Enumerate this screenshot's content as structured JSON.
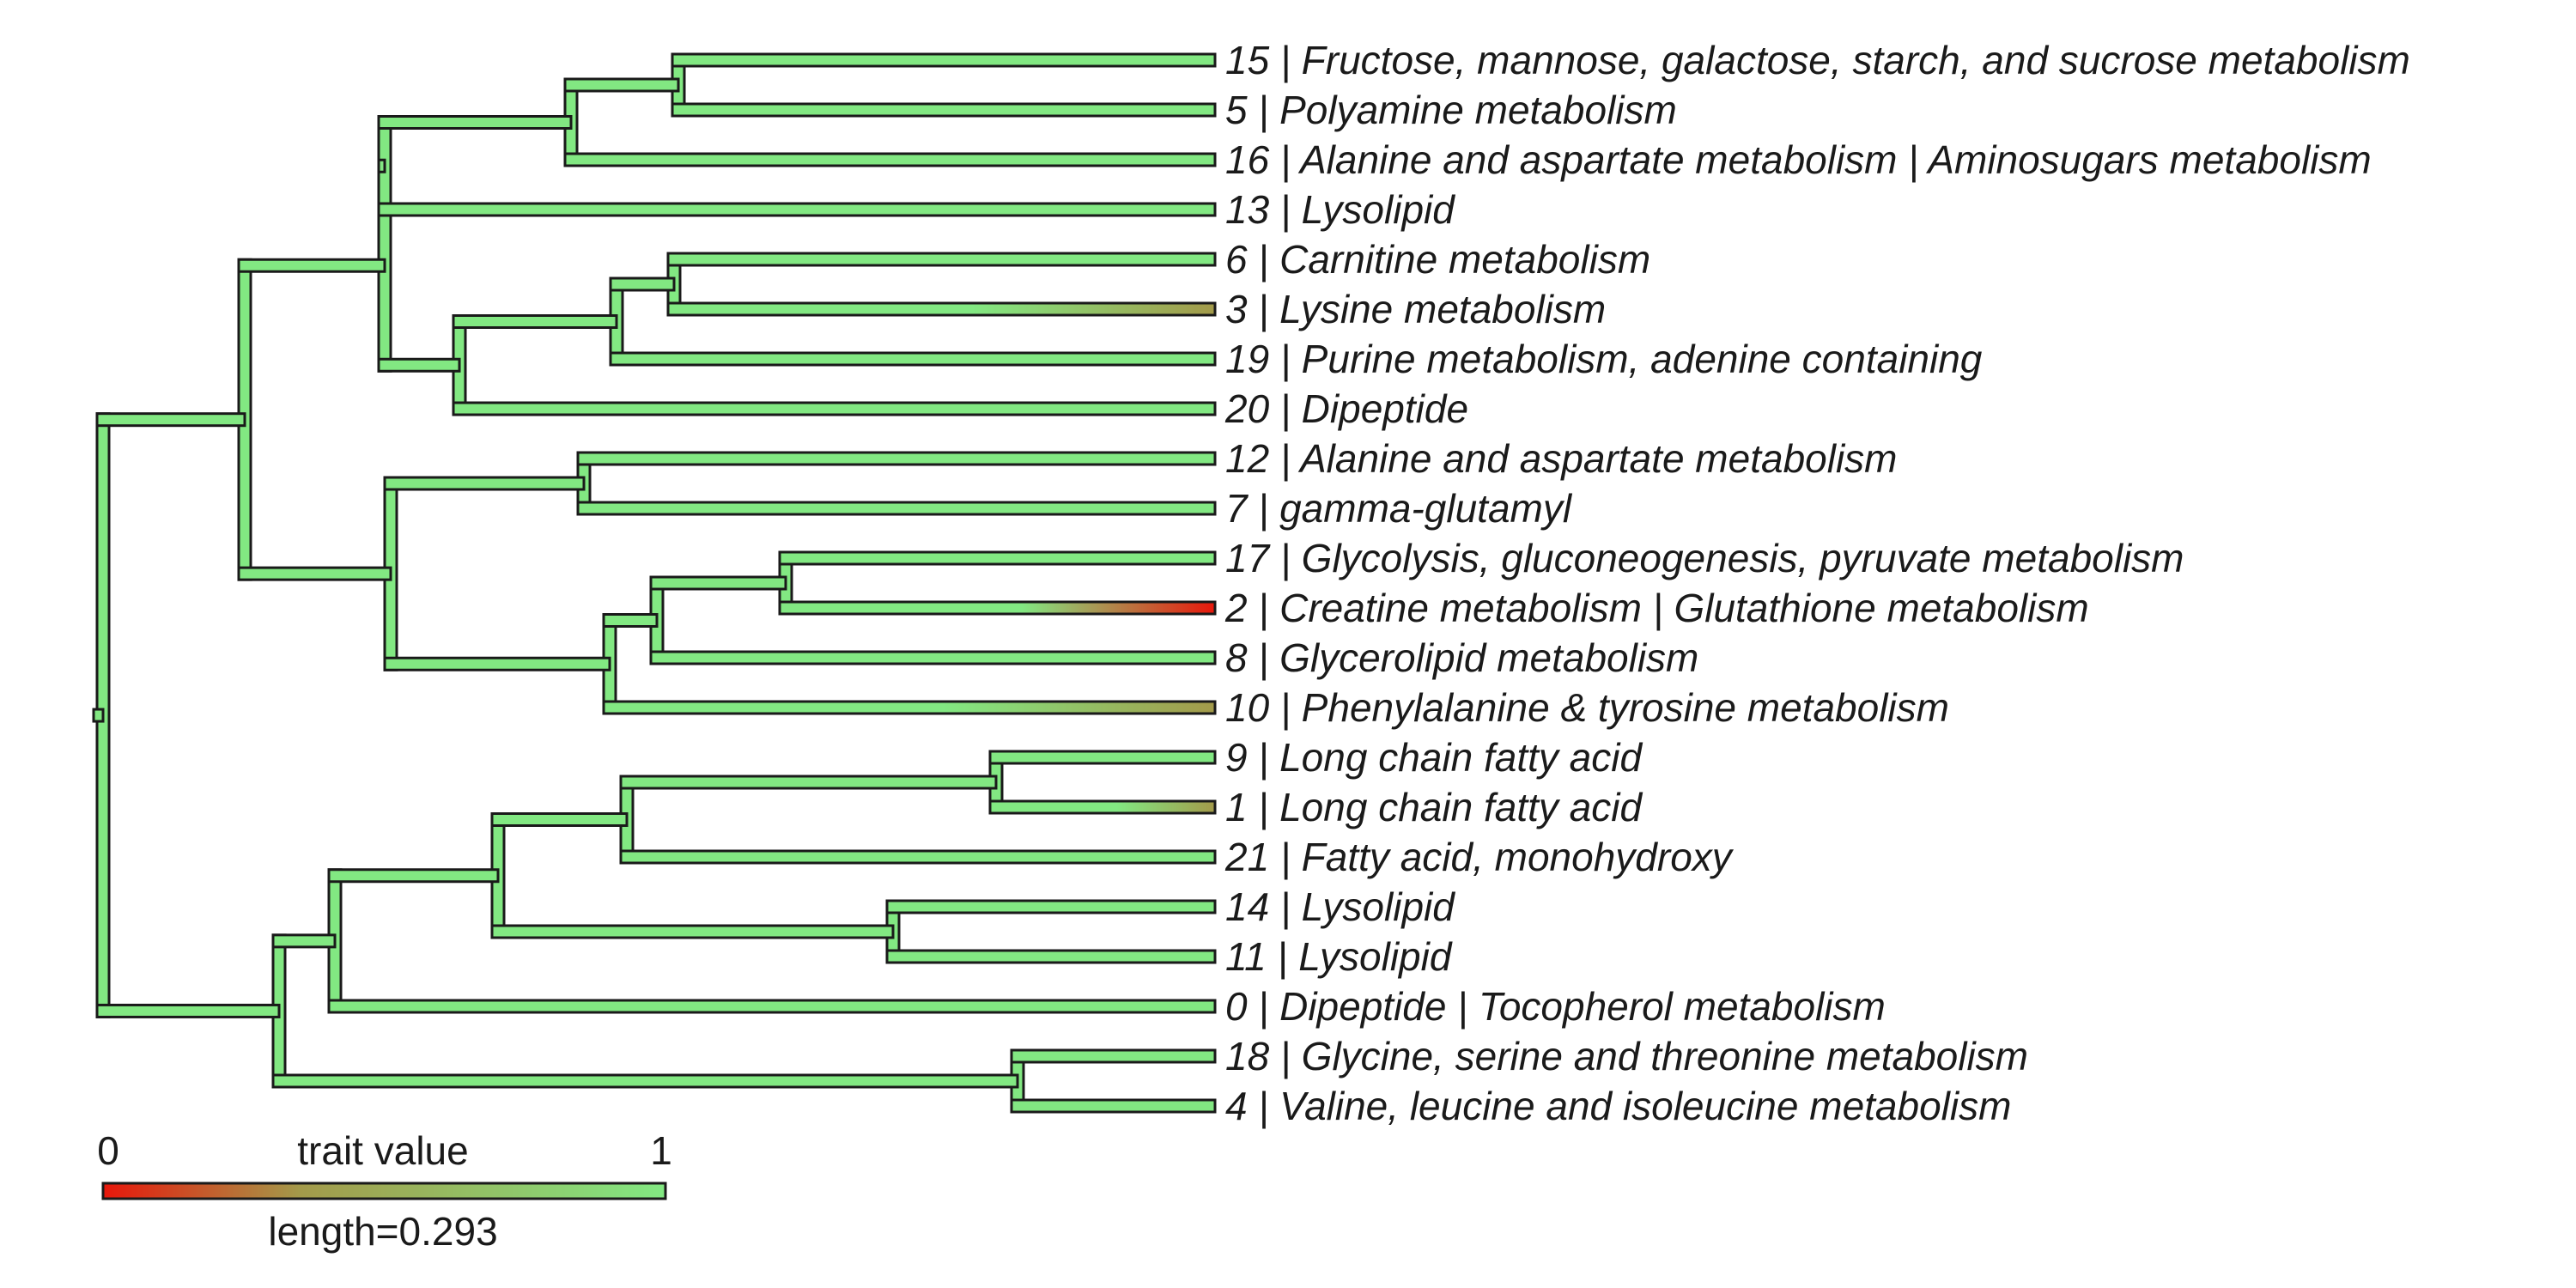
{
  "tree": {
    "tips": [
      {
        "id": "15",
        "label": "15 | Fructose, mannose, galactose, starch, and sucrose metabolism",
        "value": 1.0
      },
      {
        "id": "5",
        "label": "5 | Polyamine metabolism",
        "value": 1.0
      },
      {
        "id": "16",
        "label": "16 | Alanine and aspartate metabolism | Aminosugars metabolism",
        "value": 1.0
      },
      {
        "id": "13",
        "label": "13 | Lysolipid",
        "value": 1.0
      },
      {
        "id": "6",
        "label": "6 | Carnitine metabolism",
        "value": 1.0
      },
      {
        "id": "3",
        "label": "3 | Lysine metabolism",
        "value": 0.5
      },
      {
        "id": "19",
        "label": "19 | Purine metabolism, adenine containing",
        "value": 1.0
      },
      {
        "id": "20",
        "label": "20 | Dipeptide",
        "value": 1.0
      },
      {
        "id": "12",
        "label": "12 | Alanine and aspartate metabolism",
        "value": 1.0
      },
      {
        "id": "7",
        "label": "7 | gamma-glutamyl",
        "value": 1.0
      },
      {
        "id": "17",
        "label": "17 | Glycolysis, gluconeogenesis, pyruvate metabolism",
        "value": 1.0
      },
      {
        "id": "2",
        "label": "2 | Creatine metabolism | Glutathione metabolism",
        "value": 0.0
      },
      {
        "id": "8",
        "label": "8 | Glycerolipid metabolism",
        "value": 1.0
      },
      {
        "id": "10",
        "label": "10 | Phenylalanine & tyrosine metabolism",
        "value": 0.5
      },
      {
        "id": "9",
        "label": "9 | Long chain fatty acid",
        "value": 1.0
      },
      {
        "id": "1",
        "label": "1 | Long chain fatty acid",
        "value": 0.6
      },
      {
        "id": "21",
        "label": "21 | Fatty acid, monohydroxy",
        "value": 1.0
      },
      {
        "id": "14",
        "label": "14 | Lysolipid",
        "value": 1.0
      },
      {
        "id": "11",
        "label": "11 | Lysolipid",
        "value": 1.0
      },
      {
        "id": "0",
        "label": "0 | Dipeptide | Tocopherol metabolism",
        "value": 1.0
      },
      {
        "id": "18",
        "label": "18 | Glycine, serine and threonine metabolism",
        "value": 1.0
      },
      {
        "id": "4",
        "label": "4 | Valine, leucine and isoleucine metabolism",
        "value": 1.0
      }
    ]
  },
  "legend": {
    "min_label": "0",
    "max_label": "1",
    "title": "trait value",
    "length_label": "length=0.293",
    "colors": {
      "low": "#e8170b",
      "mid": "#a39a4a",
      "high": "#82e882"
    }
  },
  "colors": {
    "branch_fill": "#82e882",
    "outline": "#1a1a1a"
  }
}
